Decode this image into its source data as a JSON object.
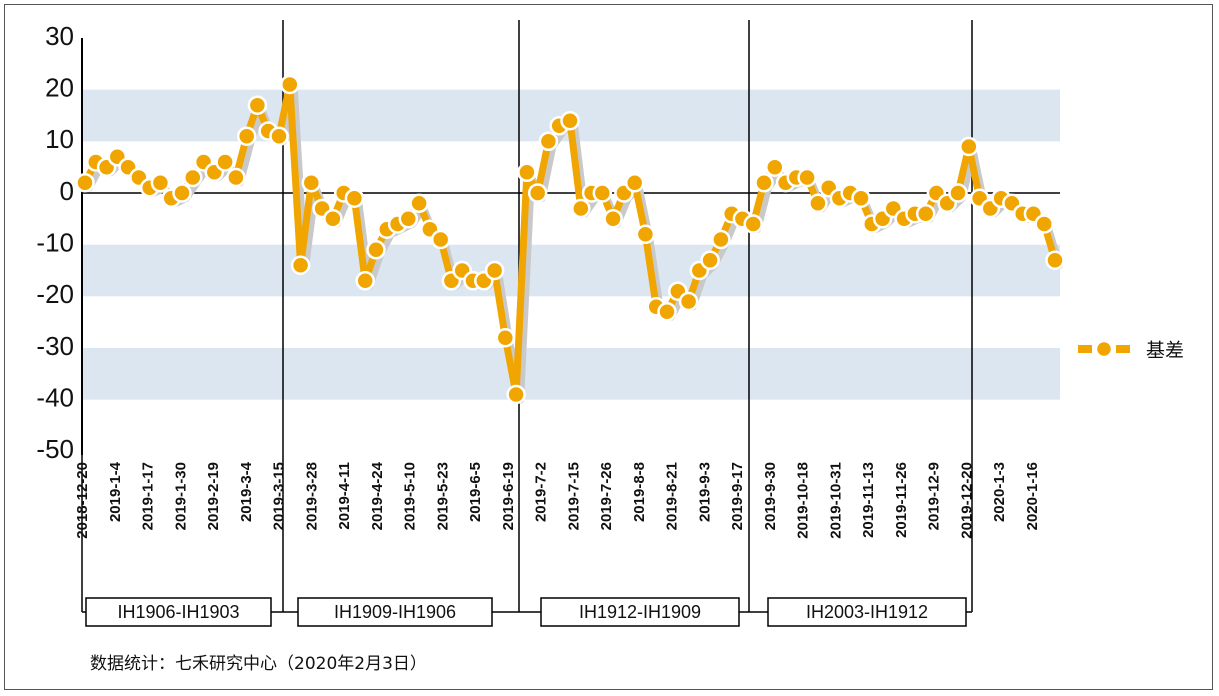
{
  "chart_data": {
    "type": "line",
    "ylim": [
      -50,
      30
    ],
    "y_ticks": [
      "30",
      "20",
      "10",
      "0",
      "-10",
      "-20",
      "-30",
      "-40",
      "-50"
    ],
    "x_tick_labels": [
      "2018-12-20",
      "2019-1-4",
      "2019-1-17",
      "2019-1-30",
      "2019-2-19",
      "2019-3-4",
      "2019-3-15",
      "2019-3-28",
      "2019-4-11",
      "2019-4-24",
      "2019-5-10",
      "2019-5-23",
      "2019-6-5",
      "2019-6-19",
      "2019-7-2",
      "2019-7-15",
      "2019-7-26",
      "2019-8-8",
      "2019-8-21",
      "2019-9-3",
      "2019-9-17",
      "2019-9-30",
      "2019-10-18",
      "2019-10-31",
      "2019-11-13",
      "2019-11-26",
      "2019-12-9",
      "2019-12-20",
      "2020-1-3",
      "2020-1-16"
    ],
    "series": [
      {
        "name": "基差",
        "color": "#F0A500",
        "values": [
          2,
          6,
          5,
          7,
          5,
          3,
          1,
          2,
          -1,
          0,
          3,
          6,
          4,
          6,
          3,
          11,
          17,
          12,
          11,
          21,
          -14,
          2,
          -3,
          -5,
          0,
          -1,
          -17,
          -11,
          -7,
          -6,
          -5,
          -2,
          -7,
          -9,
          -17,
          -15,
          -17,
          -17,
          -15,
          -28,
          -39,
          4,
          0,
          10,
          13,
          14,
          -3,
          0,
          0,
          -5,
          0,
          2,
          -8,
          -22,
          -23,
          -19,
          -21,
          -15,
          -13,
          -9,
          -4,
          -5,
          -6,
          2,
          5,
          2,
          3,
          3,
          -2,
          1,
          -1,
          0,
          -1,
          -6,
          -5,
          -3,
          -5,
          -4,
          -4,
          0,
          -2,
          0,
          9,
          -1,
          -3,
          -1,
          -2,
          -4,
          -4,
          -6,
          -13
        ],
        "markers_every": 1
      }
    ],
    "contract_periods": [
      "IH1906-IH1903",
      "IH1909-IH1906",
      "IH1912-IH1909",
      "IH2003-IH1912"
    ],
    "grid": "alternating horizontal bands",
    "legend_position": "right",
    "band_color": "#DCE6F1"
  },
  "legend": {
    "label": "基差"
  },
  "footer": {
    "source": "数据统计：七禾研究中心（2020年2月3日）"
  }
}
